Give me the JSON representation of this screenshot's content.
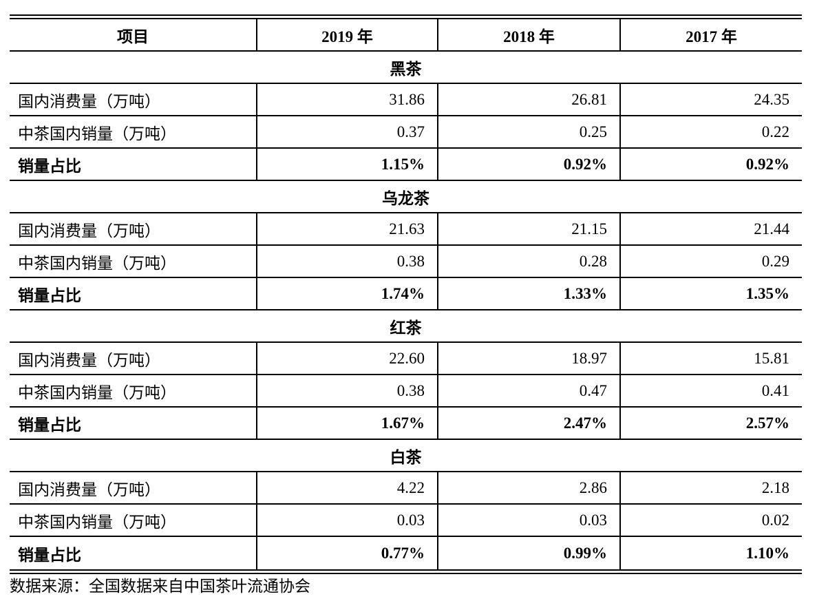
{
  "table": {
    "headers": [
      "项目",
      "2019 年",
      "2018 年",
      "2017 年"
    ],
    "sections": [
      {
        "title": "黑茶",
        "rows": [
          {
            "label": "国内消费量（万吨）",
            "values": [
              "31.86",
              "26.81",
              "24.35"
            ],
            "bold": false
          },
          {
            "label": "中茶国内销量（万吨）",
            "values": [
              "0.37",
              "0.25",
              "0.22"
            ],
            "bold": false
          },
          {
            "label": "销量占比",
            "values": [
              "1.15%",
              "0.92%",
              "0.92%"
            ],
            "bold": true
          }
        ]
      },
      {
        "title": "乌龙茶",
        "rows": [
          {
            "label": "国内消费量（万吨）",
            "values": [
              "21.63",
              "21.15",
              "21.44"
            ],
            "bold": false
          },
          {
            "label": "中茶国内销量（万吨）",
            "values": [
              "0.38",
              "0.28",
              "0.29"
            ],
            "bold": false
          },
          {
            "label": "销量占比",
            "values": [
              "1.74%",
              "1.33%",
              "1.35%"
            ],
            "bold": true
          }
        ]
      },
      {
        "title": "红茶",
        "rows": [
          {
            "label": "国内消费量（万吨）",
            "values": [
              "22.60",
              "18.97",
              "15.81"
            ],
            "bold": false
          },
          {
            "label": "中茶国内销量（万吨）",
            "values": [
              "0.38",
              "0.47",
              "0.41"
            ],
            "bold": false
          },
          {
            "label": "销量占比",
            "values": [
              "1.67%",
              "2.47%",
              "2.57%"
            ],
            "bold": true
          }
        ]
      },
      {
        "title": "白茶",
        "rows": [
          {
            "label": "国内消费量（万吨）",
            "values": [
              "4.22",
              "2.86",
              "2.18"
            ],
            "bold": false
          },
          {
            "label": "中茶国内销量（万吨）",
            "values": [
              "0.03",
              "0.03",
              "0.02"
            ],
            "bold": false
          },
          {
            "label": "销量占比",
            "values": [
              "0.77%",
              "0.99%",
              "1.10%"
            ],
            "bold": true
          }
        ]
      }
    ],
    "source_note": "数据来源：全国数据来自中国茶叶流通协会"
  },
  "colors": {
    "text": "#000000",
    "border": "#000000",
    "background": "#ffffff"
  }
}
